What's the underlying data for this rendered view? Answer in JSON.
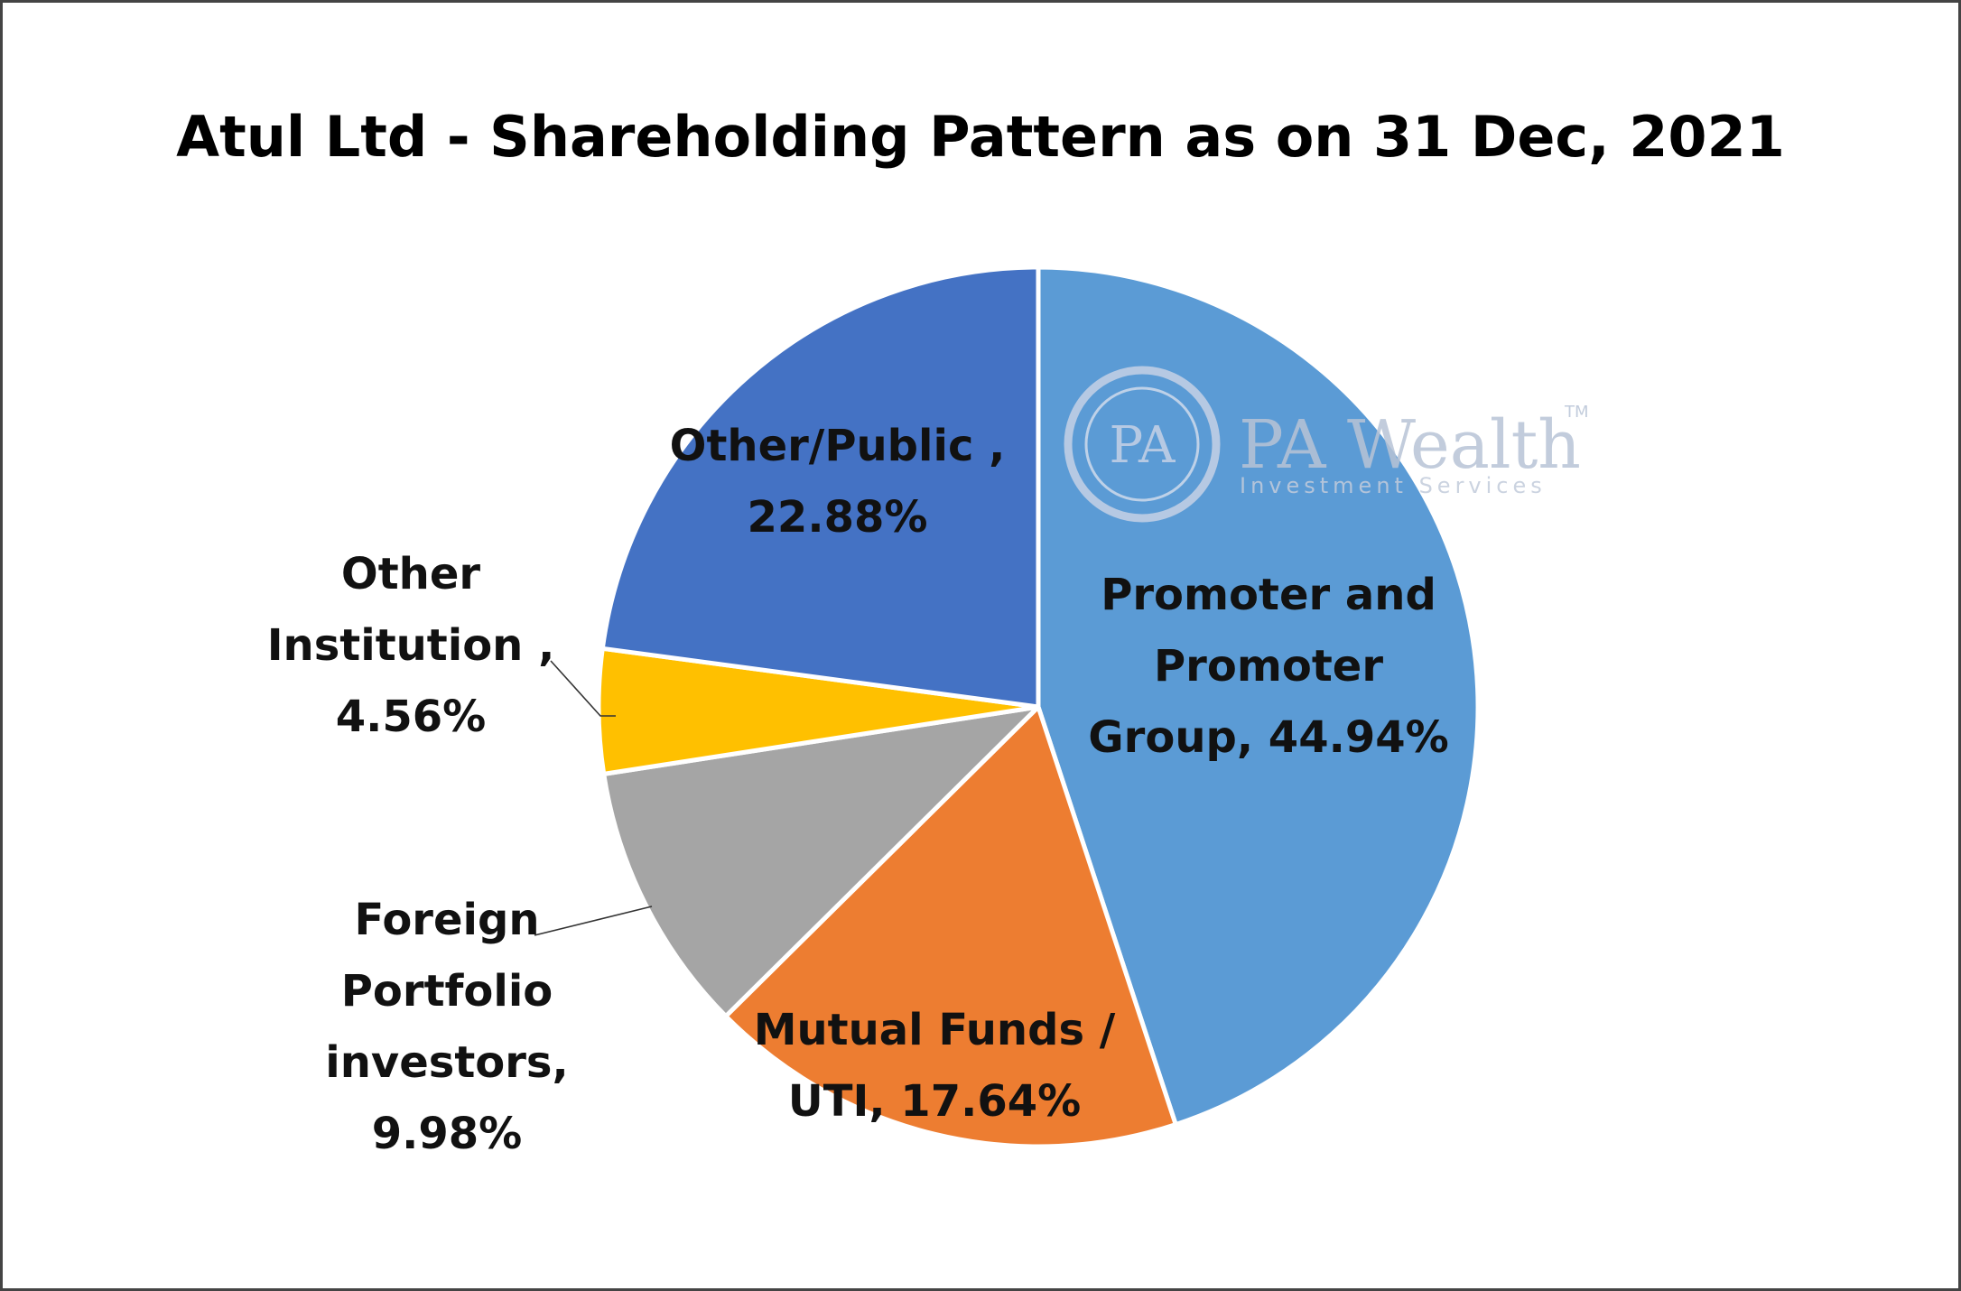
{
  "chart_data": {
    "type": "pie",
    "title": "Atul Ltd - Shareholding Pattern as on 31 Dec, 2021",
    "slices": [
      {
        "name": "Promoter and Promoter Group",
        "value": 44.94,
        "color": "#5b9bd5",
        "label_lines": [
          "Promoter and",
          "Promoter",
          "Group, 44.94%"
        ]
      },
      {
        "name": "Mutual  Funds / UTI",
        "value": 17.64,
        "color": "#ed7d31",
        "label_lines": [
          "Mutual  Funds /",
          "UTI, 17.64%"
        ]
      },
      {
        "name": "Foreign Portfolio investors",
        "value": 9.98,
        "color": "#a5a5a5",
        "label_lines": [
          "Foreign",
          "Portfolio",
          "investors,",
          "9.98%"
        ]
      },
      {
        "name": "Other Institution",
        "value": 4.56,
        "color": "#ffc000",
        "label_lines": [
          "Other",
          "Institution ,",
          "4.56%"
        ]
      },
      {
        "name": "Other/Public",
        "value": 22.88,
        "color": "#4472c4",
        "label_lines": [
          "Other/Public ,",
          "22.88%"
        ]
      }
    ],
    "start_angle": "12 o'clock",
    "direction": "clockwise",
    "legend": "none"
  },
  "watermark": {
    "brand": "PA Wealth",
    "monogram": "PA",
    "tagline": "Investment Services",
    "trademark": "TM"
  }
}
